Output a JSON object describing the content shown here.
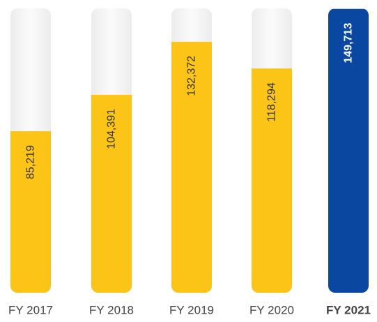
{
  "chart_data": {
    "type": "bar",
    "categories": [
      "FY 2017",
      "FY 2018",
      "FY 2019",
      "FY 2020",
      "FY 2021"
    ],
    "values": [
      85219,
      104391,
      132372,
      118294,
      149713
    ],
    "value_labels": [
      "85,219",
      "104,391",
      "132,372",
      "118,294",
      "149,713"
    ],
    "colors": [
      "#fbc417",
      "#fbc417",
      "#fbc417",
      "#fbc417",
      "#0a47a1"
    ],
    "highlight": 4,
    "ylim": [
      0,
      150000
    ]
  }
}
